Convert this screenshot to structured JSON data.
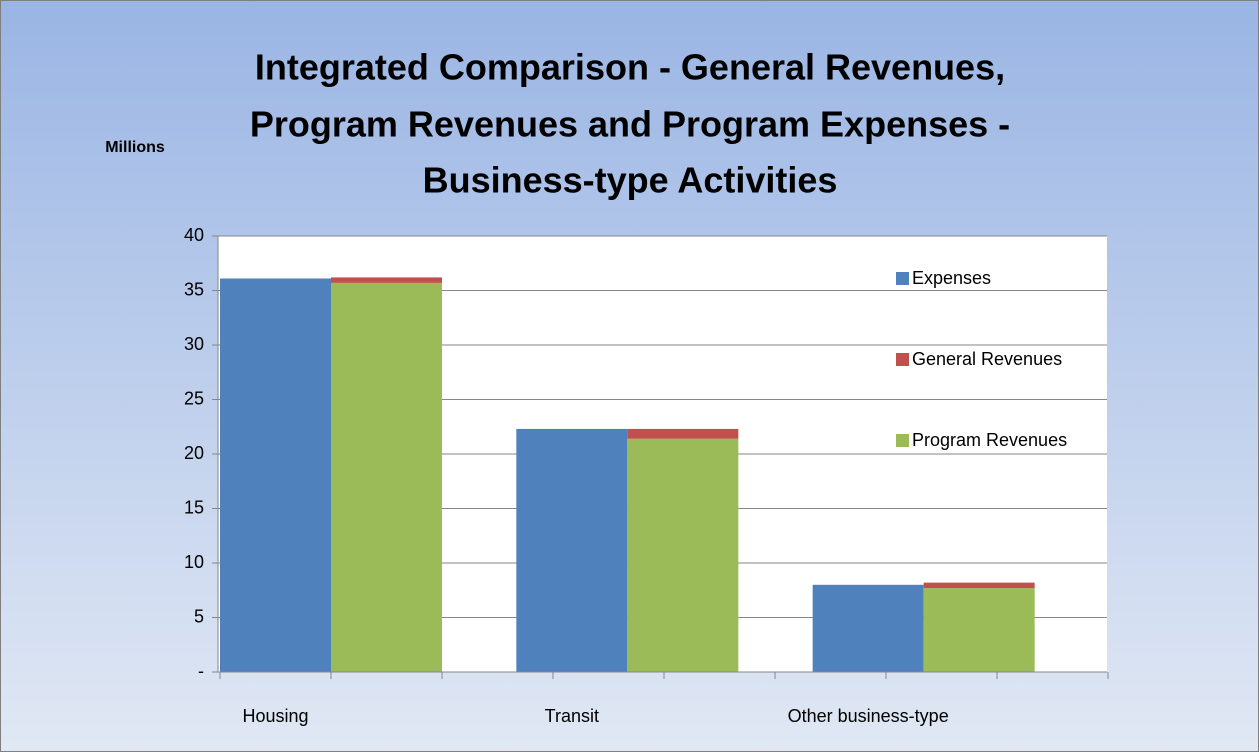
{
  "chart_data": {
    "type": "bar",
    "title": [
      "Integrated Comparison - General Revenues,",
      "Program Revenues and Program Expenses -",
      "Business-type Activities"
    ],
    "y_label": "Millions",
    "categories": [
      "Housing",
      "Transit",
      "Other business-type"
    ],
    "series": [
      {
        "name": "Expenses",
        "color": "#4f81bd",
        "values": [
          36.1,
          22.3,
          8.0
        ]
      },
      {
        "name": "General Revenues",
        "color": "#c0504d",
        "values": [
          0.5,
          0.9,
          0.5
        ]
      },
      {
        "name": "Program Revenues",
        "color": "#9bbb59",
        "values": [
          35.7,
          21.4,
          7.7
        ]
      }
    ],
    "ylim": [
      0,
      40
    ],
    "yticks": [
      {
        "value": 0,
        "label": "-"
      },
      5,
      10,
      15,
      20,
      25,
      30,
      35,
      40
    ],
    "grid": true,
    "legend": "right"
  }
}
